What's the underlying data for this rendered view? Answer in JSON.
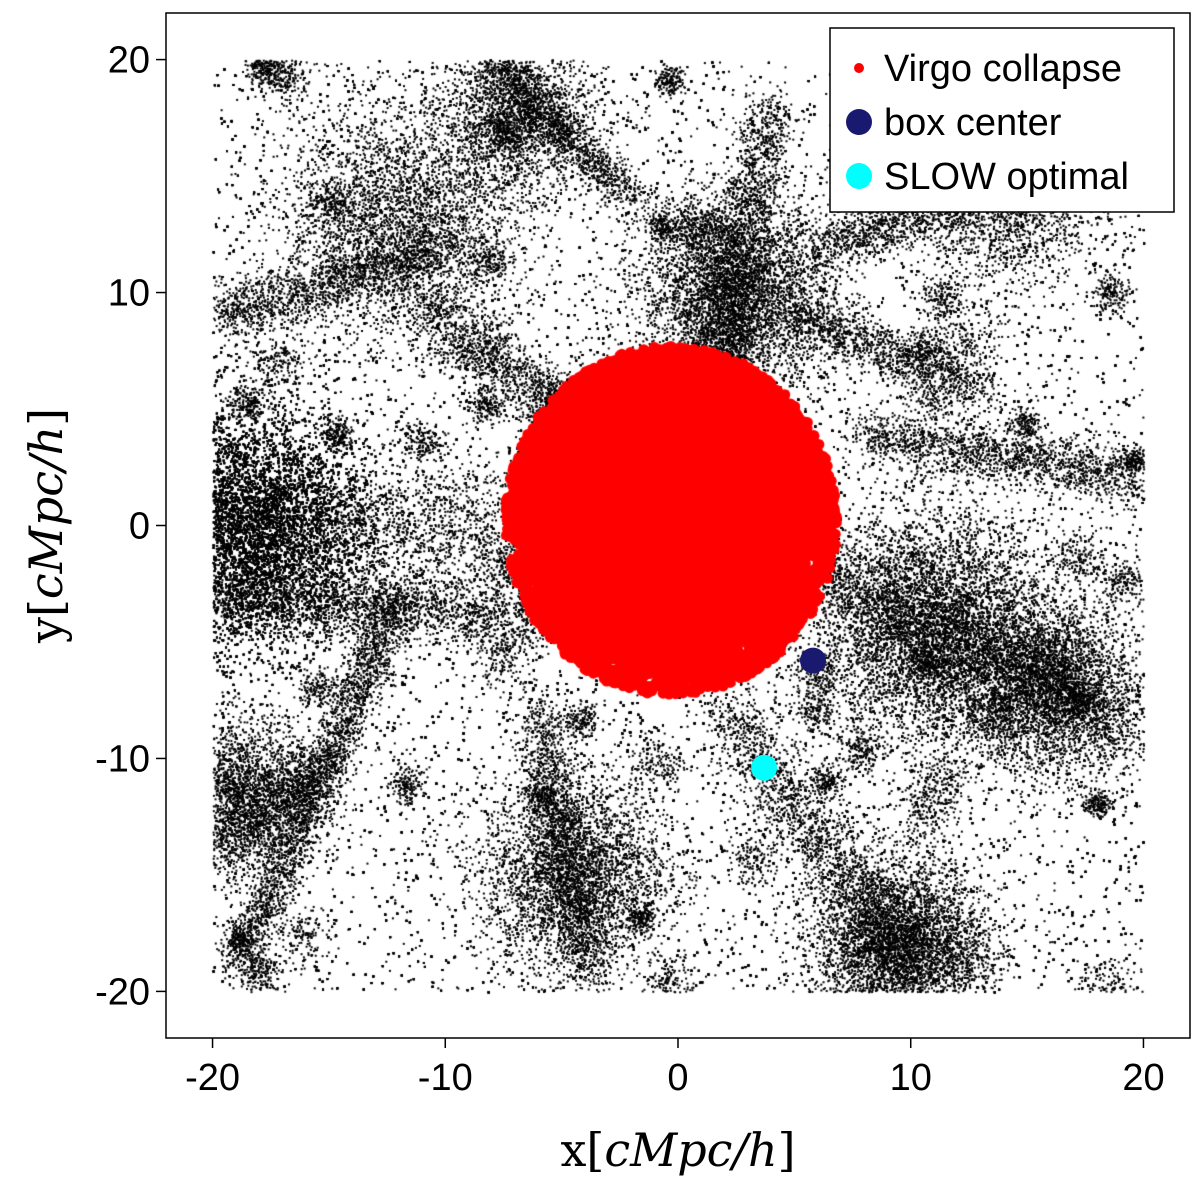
{
  "chart_data": {
    "type": "scatter",
    "title": "",
    "xlabel": {
      "prefix": "x",
      "unit": "cMpc/h"
    },
    "ylabel": {
      "prefix": "y",
      "unit": "cMpc/h"
    },
    "xlim": [
      -22,
      22
    ],
    "ylim": [
      -22,
      22
    ],
    "xticks": [
      -20,
      -10,
      0,
      10,
      20
    ],
    "yticks": [
      -20,
      -10,
      0,
      10,
      20
    ],
    "tick_labels": [
      "-20",
      "-10",
      "0",
      "10",
      "20"
    ],
    "grid": false,
    "legend_position": "top-right",
    "background_particles": {
      "name": "dark matter particles",
      "color": "#000000",
      "x_range": [
        -20,
        20
      ],
      "y_range": [
        -20,
        20
      ],
      "dense_regions": [
        {
          "x": -18.5,
          "y": 0.0,
          "spread": 2.6,
          "weight": 9
        },
        {
          "x": 11.0,
          "y": -4.5,
          "spread": 2.5,
          "weight": 3
        },
        {
          "x": 2.5,
          "y": 10.0,
          "spread": 2.0,
          "weight": 2
        },
        {
          "x": 9.5,
          "y": -18.0,
          "spread": 1.8,
          "weight": 2
        },
        {
          "x": -12.0,
          "y": 13.0,
          "spread": 2.4,
          "weight": 1.5
        },
        {
          "x": -4.5,
          "y": -15.0,
          "spread": 2.0,
          "weight": 1.5
        },
        {
          "x": 16.0,
          "y": -7.0,
          "spread": 1.8,
          "weight": 1.5
        },
        {
          "x": -18.5,
          "y": -11.5,
          "spread": 1.6,
          "weight": 1
        },
        {
          "x": -7.0,
          "y": 17.5,
          "spread": 1.6,
          "weight": 1
        },
        {
          "x": 14.0,
          "y": 14.5,
          "spread": 2.0,
          "weight": 1
        }
      ]
    },
    "series": [
      {
        "name": "Virgo collapse",
        "color": "#ff0000",
        "center": [
          -0.3,
          0.2
        ],
        "radius": 6.6,
        "marker": "small-dot"
      },
      {
        "name": "box center",
        "color": "#191970",
        "points": [
          [
            5.8,
            -5.8
          ]
        ],
        "marker": "large-dot"
      },
      {
        "name": "SLOW optimal",
        "color": "#00ffff",
        "points": [
          [
            3.7,
            -10.4
          ]
        ],
        "marker": "large-dot"
      }
    ]
  }
}
